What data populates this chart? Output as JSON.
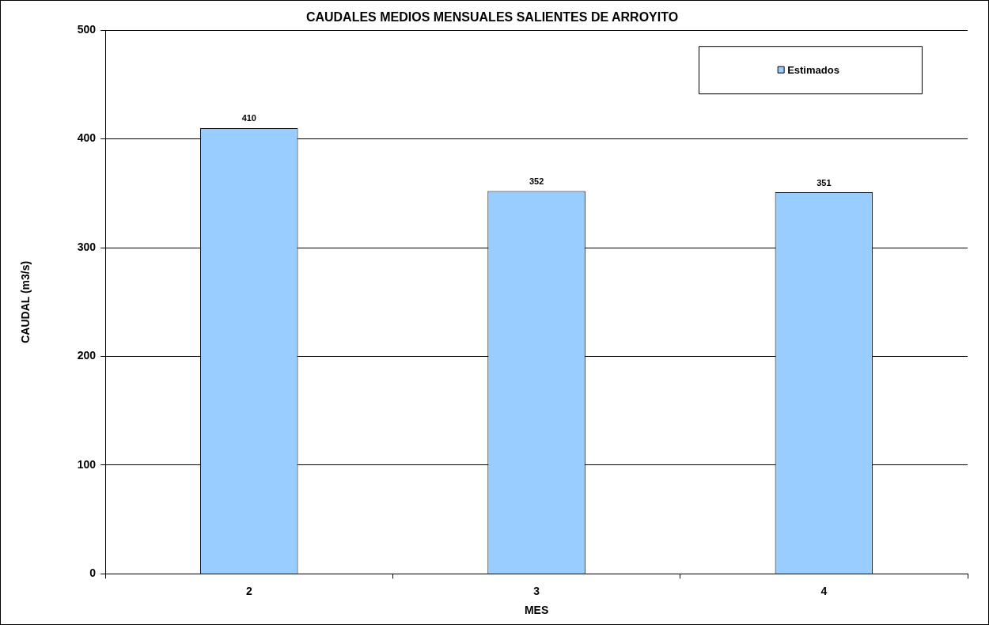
{
  "chart_data": {
    "type": "bar",
    "title": "CAUDALES MEDIOS MENSUALES SALIENTES DE ARROYITO",
    "xlabel": "MES",
    "ylabel": "CAUDAL (m3/s)",
    "categories": [
      "2",
      "3",
      "4"
    ],
    "series": [
      {
        "name": "Estimados",
        "color": "#99ccff",
        "values": [
          410,
          352,
          351
        ]
      }
    ],
    "ylim": [
      0,
      500
    ],
    "yticks": [
      0,
      100,
      200,
      300,
      400,
      500
    ],
    "grid": "y",
    "legend": "top right",
    "data_labels": true
  }
}
